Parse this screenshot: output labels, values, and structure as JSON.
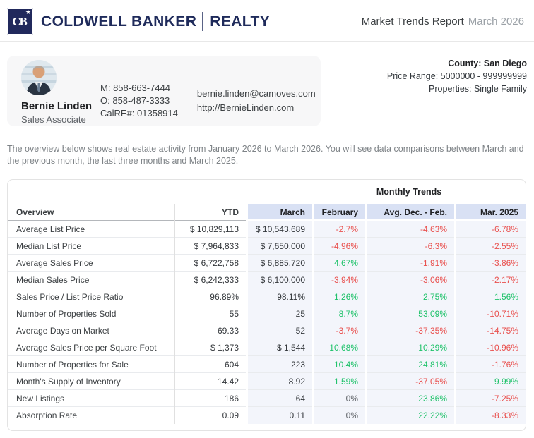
{
  "header": {
    "logo_monogram": "CB",
    "logo_star": "★",
    "brand": "COLDWELL BANKER",
    "division": "REALTY",
    "report_title": "Market Trends Report",
    "report_period": "March 2026"
  },
  "agent": {
    "name": "Bernie Linden",
    "title": "Sales Associate",
    "mobile": "M: 858-663-7444",
    "office": "O: 858-487-3333",
    "license": "CalRE#: 01358914",
    "email": "bernie.linden@camoves.com",
    "website": "http://BernieLinden.com"
  },
  "criteria": {
    "county": "County: San Diego",
    "price_range": "Price Range: 5000000 - 999999999",
    "properties": "Properties: Single Family"
  },
  "description": "The overview below shows real estate activity from January 2026 to March 2026. You will see data comparisons between March and the previous month, the last three months and March 2025.",
  "table": {
    "group_header": "Monthly Trends",
    "columns": [
      "Overview",
      "YTD",
      "March",
      "February",
      "Avg. Dec. - Feb.",
      "Mar. 2025"
    ],
    "rows": [
      {
        "label": "Average List Price",
        "ytd": "$ 10,829,113",
        "march": "$ 10,543,689",
        "february": "-2.7%",
        "avg_dec_feb": "-4.63%",
        "mar_2025": "-6.78%"
      },
      {
        "label": "Median List Price",
        "ytd": "$ 7,964,833",
        "march": "$ 7,650,000",
        "february": "-4.96%",
        "avg_dec_feb": "-6.3%",
        "mar_2025": "-2.55%"
      },
      {
        "label": "Average Sales Price",
        "ytd": "$ 6,722,758",
        "march": "$ 6,885,720",
        "february": "4.67%",
        "avg_dec_feb": "-1.91%",
        "mar_2025": "-3.86%"
      },
      {
        "label": "Median Sales Price",
        "ytd": "$ 6,242,333",
        "march": "$ 6,100,000",
        "february": "-3.94%",
        "avg_dec_feb": "-3.06%",
        "mar_2025": "-2.17%"
      },
      {
        "label": "Sales Price / List Price Ratio",
        "ytd": "96.89%",
        "march": "98.11%",
        "february": "1.26%",
        "avg_dec_feb": "2.75%",
        "mar_2025": "1.56%"
      },
      {
        "label": "Number of Properties Sold",
        "ytd": "55",
        "march": "25",
        "february": "8.7%",
        "avg_dec_feb": "53.09%",
        "mar_2025": "-10.71%"
      },
      {
        "label": "Average Days on Market",
        "ytd": "69.33",
        "march": "52",
        "february": "-3.7%",
        "avg_dec_feb": "-37.35%",
        "mar_2025": "-14.75%"
      },
      {
        "label": "Average Sales Price per Square Foot",
        "ytd": "$ 1,373",
        "march": "$ 1,544",
        "february": "10.68%",
        "avg_dec_feb": "10.29%",
        "mar_2025": "-10.96%"
      },
      {
        "label": "Number of Properties for Sale",
        "ytd": "604",
        "march": "223",
        "february": "10.4%",
        "avg_dec_feb": "24.81%",
        "mar_2025": "-1.76%"
      },
      {
        "label": "Month's Supply of Inventory",
        "ytd": "14.42",
        "march": "8.92",
        "february": "1.59%",
        "avg_dec_feb": "-37.05%",
        "mar_2025": "9.99%"
      },
      {
        "label": "New Listings",
        "ytd": "186",
        "march": "64",
        "february": "0%",
        "avg_dec_feb": "23.86%",
        "mar_2025": "-7.25%"
      },
      {
        "label": "Absorption Rate",
        "ytd": "0.09",
        "march": "0.11",
        "february": "0%",
        "avg_dec_feb": "22.22%",
        "mar_2025": "-8.33%"
      }
    ]
  },
  "colors": {
    "brand_navy": "#21295c",
    "negative_red": "#e9504e",
    "positive_green": "#1fc26a",
    "neutral_gray": "#5f6368",
    "header_blue": "#d9e1f4",
    "cell_lavender": "#f3f5fb"
  }
}
